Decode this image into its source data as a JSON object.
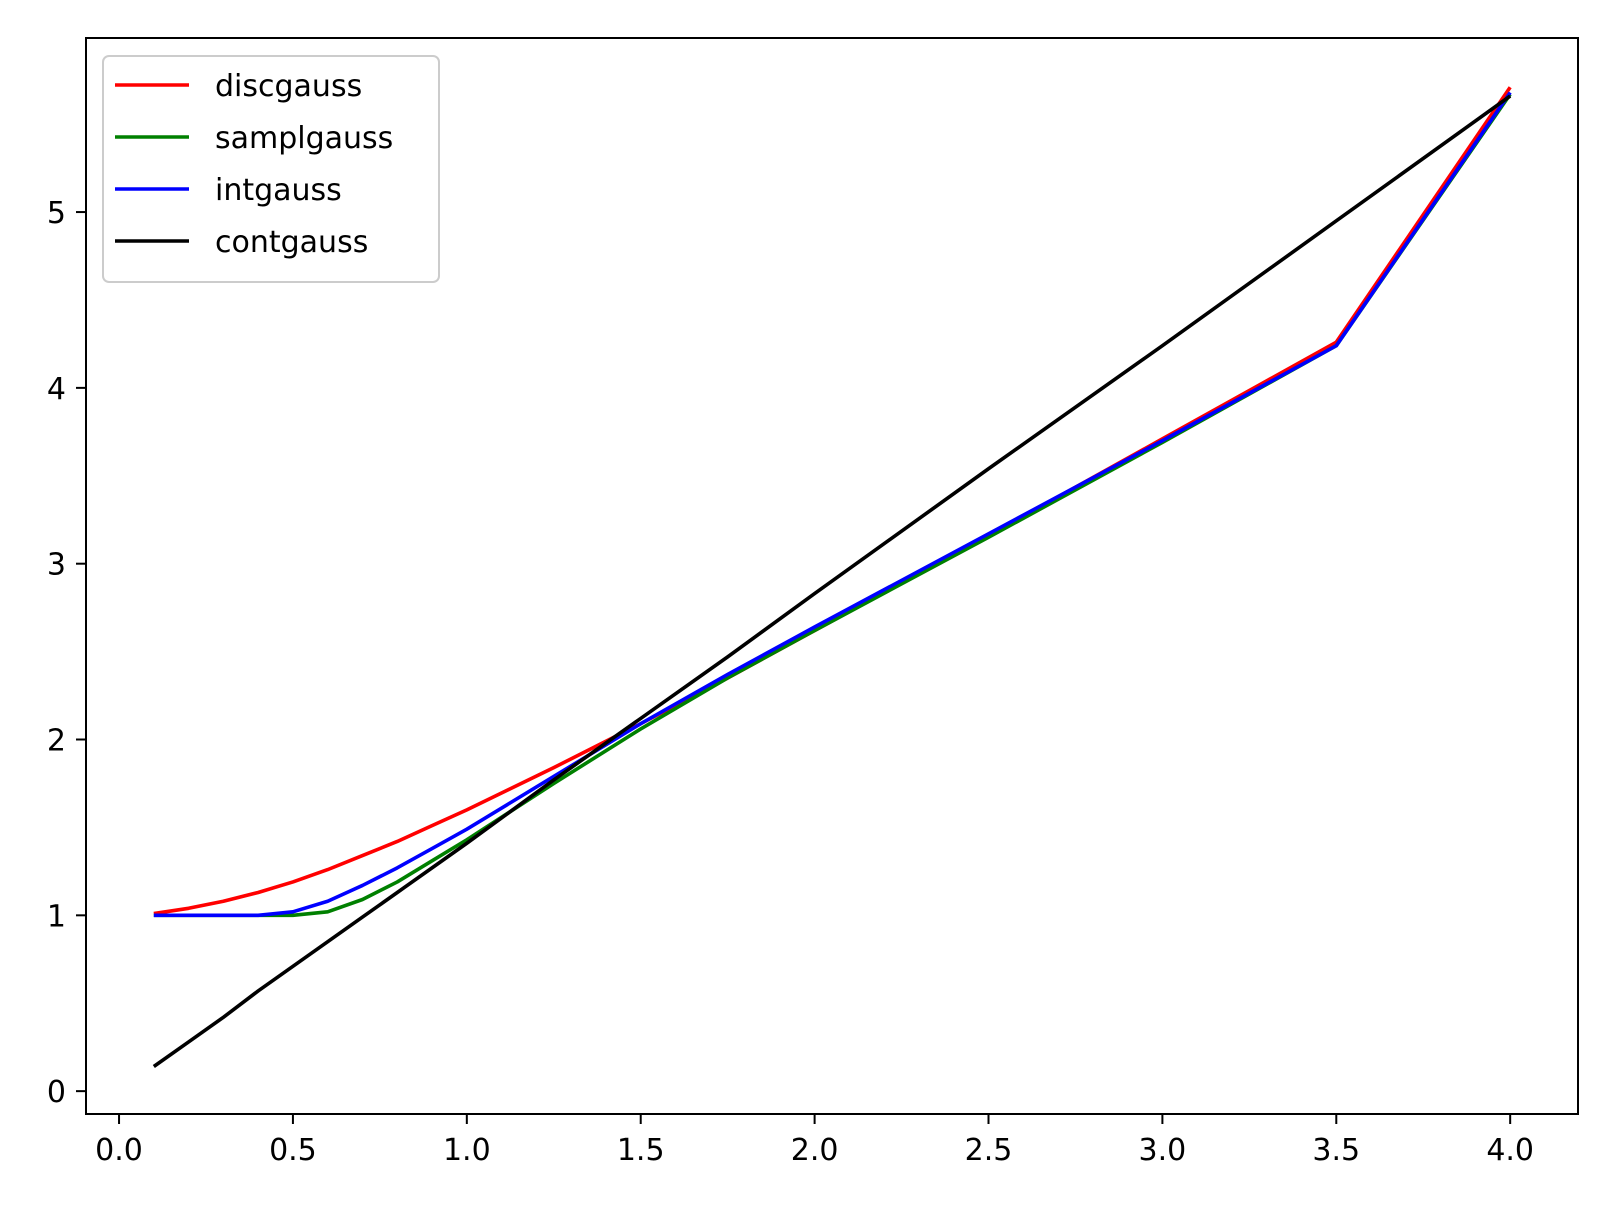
{
  "chart_data": {
    "type": "line",
    "title": "",
    "xlabel": "",
    "ylabel": "",
    "xlim": [
      -0.095,
      4.195
    ],
    "ylim": [
      -0.13,
      5.99
    ],
    "xticks": [
      0.0,
      0.5,
      1.0,
      1.5,
      2.0,
      2.5,
      3.0,
      3.5,
      4.0
    ],
    "xtick_labels": [
      "0.0",
      "0.5",
      "1.0",
      "1.5",
      "2.0",
      "2.5",
      "3.0",
      "3.5",
      "4.0"
    ],
    "yticks": [
      0,
      1,
      2,
      3,
      4,
      5
    ],
    "ytick_labels": [
      "0",
      "1",
      "2",
      "3",
      "4",
      "5"
    ],
    "grid": false,
    "legend_position": "top-left",
    "x": [
      0.1,
      0.2,
      0.3,
      0.4,
      0.5,
      0.6,
      0.7,
      0.8,
      0.9,
      1.0,
      1.25,
      1.5,
      1.75,
      2.0,
      2.5,
      3.0,
      3.5,
      4.0
    ],
    "series": [
      {
        "name": "discgauss",
        "color": "#ff0000",
        "values": [
          1.01,
          1.04,
          1.08,
          1.13,
          1.19,
          1.26,
          1.34,
          1.42,
          1.51,
          1.6,
          1.84,
          2.09,
          2.35,
          2.62,
          3.16,
          3.71,
          4.26,
          5.71
        ]
      },
      {
        "name": "samplgauss",
        "color": "#008000",
        "values": [
          1.0,
          1.0,
          1.0,
          1.0,
          1.0,
          1.02,
          1.09,
          1.19,
          1.31,
          1.43,
          1.75,
          2.06,
          2.35,
          2.62,
          3.15,
          3.69,
          4.24,
          5.67
        ]
      },
      {
        "name": "intgauss",
        "color": "#0000ff",
        "values": [
          1.0,
          1.0,
          1.0,
          1.0,
          1.02,
          1.08,
          1.17,
          1.27,
          1.38,
          1.49,
          1.79,
          2.09,
          2.37,
          2.64,
          3.17,
          3.7,
          4.24,
          5.68
        ]
      },
      {
        "name": "contgauss",
        "color": "#000000",
        "values": [
          0.14,
          0.28,
          0.42,
          0.57,
          0.71,
          0.85,
          0.99,
          1.13,
          1.27,
          1.41,
          1.77,
          2.12,
          2.47,
          2.83,
          3.54,
          4.24,
          4.95,
          5.66
        ]
      }
    ]
  }
}
